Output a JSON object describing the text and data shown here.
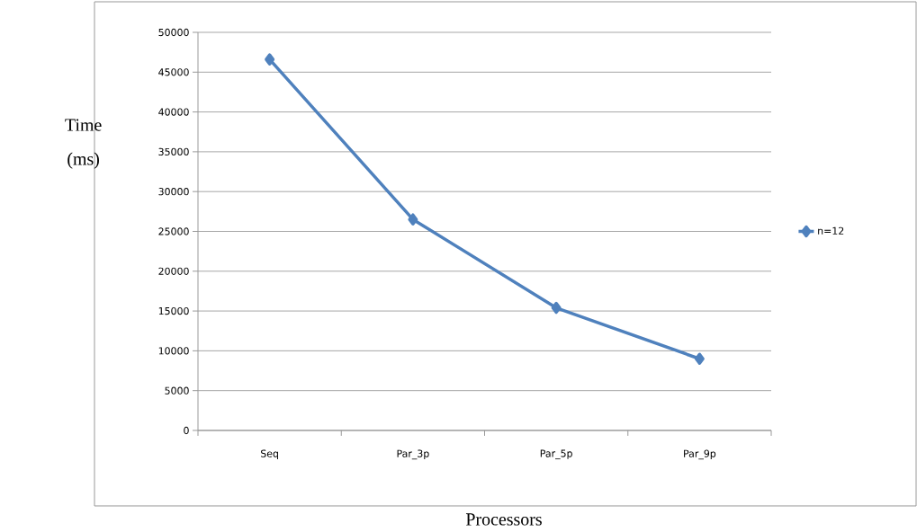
{
  "chart_data": {
    "type": "line",
    "xlabel": "Processors",
    "ylabel": "Time (ms)",
    "categories": [
      "Seq",
      "Par_3p",
      "Par_5p",
      "Par_9p"
    ],
    "series": [
      {
        "name": "n=12",
        "color": "#4f81bd",
        "values": [
          46600,
          26500,
          15400,
          9000
        ]
      }
    ],
    "ylim": [
      0,
      50000
    ],
    "yticks": [
      0,
      5000,
      10000,
      15000,
      20000,
      25000,
      30000,
      35000,
      40000,
      45000,
      50000
    ],
    "grid": "y",
    "legend": "right",
    "marker": "diamond",
    "line_style": "solid"
  }
}
